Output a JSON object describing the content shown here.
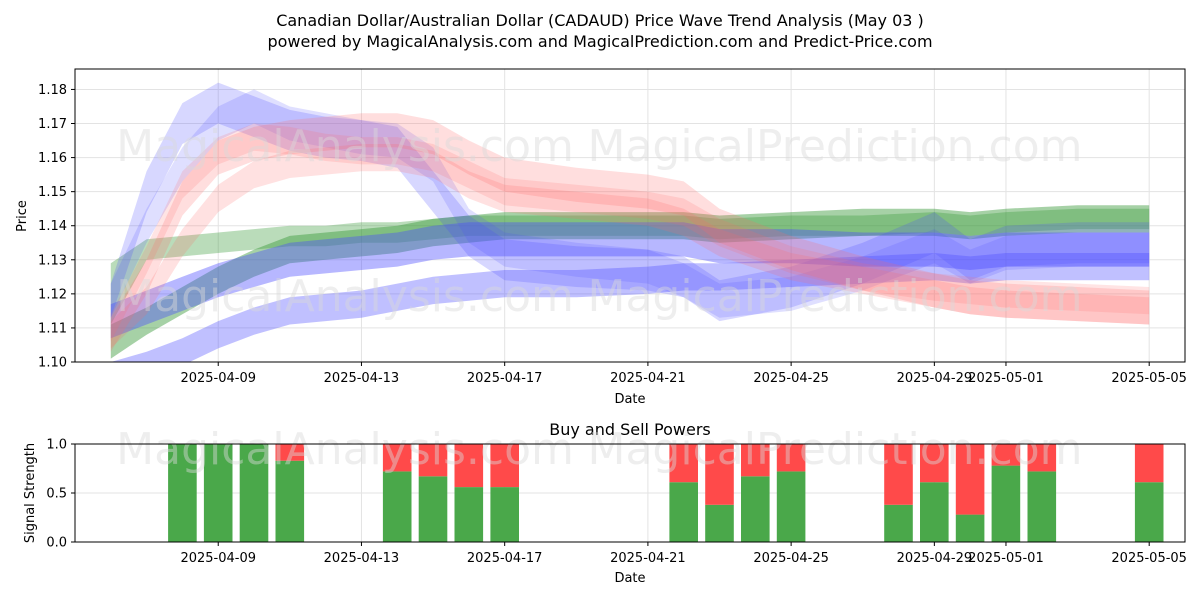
{
  "header": {
    "title_line1": "Canadian Dollar/Australian Dollar (CADAUD) Price Wave Trend Analysis (May 03 )",
    "title_line2": "powered by MagicalAnalysis.com and MagicalPrediction.com and Predict-Price.com"
  },
  "watermarks": {
    "left": "MagicalAnalysis.com",
    "right": "MagicalPrediction.com"
  },
  "chart_data": [
    {
      "type": "area",
      "title": "",
      "xlabel": "Date",
      "ylabel": "Price",
      "ylim": [
        1.1,
        1.186
      ],
      "xlim": [
        "2025-04-05",
        "2025-05-06"
      ],
      "x_ticks": [
        "2025-04-09",
        "2025-04-13",
        "2025-04-17",
        "2025-04-21",
        "2025-04-25",
        "2025-04-29",
        "2025-05-01",
        "2025-05-05"
      ],
      "y_ticks": [
        "1.10",
        "1.11",
        "1.12",
        "1.13",
        "1.14",
        "1.15",
        "1.16",
        "1.17",
        "1.18"
      ],
      "grid": true,
      "band_colors": {
        "green": "#3a9a3a",
        "blue": "#4b4bff",
        "red": "#ff6b6b"
      },
      "x": [
        "2025-04-06",
        "2025-04-07",
        "2025-04-08",
        "2025-04-09",
        "2025-04-10",
        "2025-04-11",
        "2025-04-12",
        "2025-04-13",
        "2025-04-14",
        "2025-04-15",
        "2025-04-16",
        "2025-04-17",
        "2025-04-19",
        "2025-04-21",
        "2025-04-22",
        "2025-04-23",
        "2025-04-25",
        "2025-04-27",
        "2025-04-29",
        "2025-04-30",
        "2025-05-01",
        "2025-05-03",
        "2025-05-05"
      ],
      "series": [
        {
          "color": "green",
          "center": [
            1.12,
            1.133,
            1.134,
            1.135,
            1.136,
            1.137,
            1.137,
            1.138,
            1.138,
            1.139,
            1.14,
            1.14,
            1.14,
            1.14,
            1.14,
            1.139,
            1.14,
            1.14,
            1.141,
            1.14,
            1.141,
            1.142,
            1.142
          ],
          "width": [
            0.018,
            0.006,
            0.006,
            0.006,
            0.006,
            0.006,
            0.006,
            0.006,
            0.006,
            0.006,
            0.006,
            0.006,
            0.006,
            0.006,
            0.006,
            0.006,
            0.006,
            0.006,
            0.006,
            0.006,
            0.006,
            0.006,
            0.006
          ],
          "opacity": 0.35
        },
        {
          "color": "green",
          "center": [
            1.106,
            1.112,
            1.118,
            1.124,
            1.129,
            1.133,
            1.134,
            1.135,
            1.136,
            1.138,
            1.139,
            1.14,
            1.14,
            1.14,
            1.14,
            1.139,
            1.14,
            1.141,
            1.141,
            1.14,
            1.141,
            1.142,
            1.142
          ],
          "width": [
            0.01,
            0.008,
            0.008,
            0.008,
            0.008,
            0.008,
            0.008,
            0.008,
            0.008,
            0.008,
            0.008,
            0.008,
            0.008,
            0.008,
            0.008,
            0.008,
            0.008,
            0.008,
            0.008,
            0.008,
            0.008,
            0.008,
            0.008
          ],
          "opacity": 0.45
        },
        {
          "color": "blue",
          "center": [
            1.095,
            1.099,
            1.103,
            1.108,
            1.112,
            1.115,
            1.116,
            1.117,
            1.119,
            1.121,
            1.122,
            1.123,
            1.123,
            1.124,
            1.125,
            1.125,
            1.126,
            1.127,
            1.128,
            1.127,
            1.128,
            1.128,
            1.128
          ],
          "width": [
            0.01,
            0.008,
            0.008,
            0.008,
            0.008,
            0.008,
            0.008,
            0.008,
            0.008,
            0.008,
            0.008,
            0.008,
            0.008,
            0.008,
            0.008,
            0.008,
            0.008,
            0.008,
            0.008,
            0.008,
            0.008,
            0.008,
            0.008
          ],
          "opacity": 0.35
        },
        {
          "color": "blue",
          "center": [
            1.112,
            1.116,
            1.12,
            1.124,
            1.127,
            1.13,
            1.131,
            1.132,
            1.133,
            1.135,
            1.136,
            1.136,
            1.136,
            1.136,
            1.136,
            1.134,
            1.134,
            1.133,
            1.133,
            1.132,
            1.133,
            1.133,
            1.133
          ],
          "width": [
            0.01,
            0.01,
            0.01,
            0.01,
            0.01,
            0.01,
            0.01,
            0.01,
            0.01,
            0.01,
            0.01,
            0.01,
            0.01,
            0.01,
            0.01,
            0.01,
            0.01,
            0.01,
            0.01,
            0.01,
            0.01,
            0.01,
            0.01
          ],
          "opacity": 0.4
        },
        {
          "color": "blue",
          "center": [
            1.118,
            1.15,
            1.17,
            1.176,
            1.172,
            1.168,
            1.166,
            1.165,
            1.163,
            1.15,
            1.137,
            1.13,
            1.128,
            1.127,
            1.125,
            1.118,
            1.122,
            1.129,
            1.138,
            1.13,
            1.134,
            1.135,
            1.135
          ],
          "width": [
            0.01,
            0.012,
            0.012,
            0.012,
            0.012,
            0.012,
            0.012,
            0.012,
            0.012,
            0.012,
            0.012,
            0.012,
            0.012,
            0.012,
            0.012,
            0.012,
            0.012,
            0.012,
            0.012,
            0.012,
            0.012,
            0.012,
            0.012
          ],
          "opacity": 0.22
        },
        {
          "color": "blue",
          "center": [
            1.118,
            1.14,
            1.158,
            1.17,
            1.175,
            1.17,
            1.168,
            1.166,
            1.165,
            1.158,
            1.14,
            1.133,
            1.13,
            1.128,
            1.124,
            1.118,
            1.12,
            1.126,
            1.134,
            1.128,
            1.132,
            1.133,
            1.133
          ],
          "width": [
            0.01,
            0.01,
            0.01,
            0.01,
            0.01,
            0.01,
            0.01,
            0.01,
            0.01,
            0.01,
            0.01,
            0.01,
            0.01,
            0.01,
            0.01,
            0.01,
            0.01,
            0.01,
            0.01,
            0.01,
            0.01,
            0.01,
            0.01
          ],
          "opacity": 0.18
        },
        {
          "color": "red",
          "center": [
            1.108,
            1.125,
            1.148,
            1.16,
            1.164,
            1.166,
            1.167,
            1.168,
            1.168,
            1.166,
            1.16,
            1.155,
            1.152,
            1.15,
            1.148,
            1.14,
            1.132,
            1.126,
            1.121,
            1.119,
            1.118,
            1.117,
            1.116
          ],
          "width": [
            0.01,
            0.01,
            0.01,
            0.01,
            0.01,
            0.01,
            0.01,
            0.01,
            0.01,
            0.01,
            0.01,
            0.01,
            0.01,
            0.01,
            0.01,
            0.01,
            0.01,
            0.01,
            0.01,
            0.01,
            0.01,
            0.01,
            0.01
          ],
          "opacity": 0.22
        },
        {
          "color": "red",
          "center": [
            1.108,
            1.118,
            1.135,
            1.148,
            1.155,
            1.158,
            1.159,
            1.16,
            1.16,
            1.158,
            1.152,
            1.148,
            1.146,
            1.144,
            1.141,
            1.135,
            1.128,
            1.124,
            1.12,
            1.118,
            1.117,
            1.116,
            1.115
          ],
          "width": [
            0.008,
            0.008,
            0.008,
            0.008,
            0.008,
            0.008,
            0.008,
            0.008,
            0.008,
            0.008,
            0.008,
            0.008,
            0.008,
            0.008,
            0.008,
            0.008,
            0.008,
            0.008,
            0.008,
            0.008,
            0.008,
            0.008,
            0.008
          ],
          "opacity": 0.2
        },
        {
          "color": "red",
          "center": [
            1.11,
            1.13,
            1.152,
            1.162,
            1.166,
            1.165,
            1.163,
            1.162,
            1.162,
            1.16,
            1.155,
            1.15,
            1.148,
            1.146,
            1.144,
            1.138,
            1.13,
            1.125,
            1.122,
            1.121,
            1.12,
            1.119,
            1.118
          ],
          "width": [
            0.008,
            0.008,
            0.008,
            0.008,
            0.008,
            0.008,
            0.008,
            0.008,
            0.008,
            0.008,
            0.008,
            0.008,
            0.008,
            0.008,
            0.008,
            0.008,
            0.008,
            0.008,
            0.008,
            0.008,
            0.008,
            0.008,
            0.008
          ],
          "opacity": 0.18
        }
      ]
    },
    {
      "type": "bar",
      "title": "Buy and Sell Powers",
      "xlabel": "Date",
      "ylabel": "Signal Strength",
      "ylim": [
        0.0,
        1.0
      ],
      "xlim": [
        "2025-04-05",
        "2025-05-06"
      ],
      "x_ticks": [
        "2025-04-09",
        "2025-04-13",
        "2025-04-17",
        "2025-04-21",
        "2025-04-25",
        "2025-04-29",
        "2025-05-01",
        "2025-05-05"
      ],
      "y_ticks": [
        "0.0",
        "0.5",
        "1.0"
      ],
      "grid": true,
      "buy_color": "#4aa84a",
      "sell_color": "#ff4a4a",
      "x": [
        "2025-04-08",
        "2025-04-09",
        "2025-04-10",
        "2025-04-11",
        "2025-04-14",
        "2025-04-15",
        "2025-04-16",
        "2025-04-17",
        "2025-04-22",
        "2025-04-23",
        "2025-04-24",
        "2025-04-25",
        "2025-04-28",
        "2025-04-29",
        "2025-04-30",
        "2025-05-01",
        "2025-05-02",
        "2025-05-05"
      ],
      "buy": [
        1.0,
        1.0,
        1.0,
        0.83,
        0.72,
        0.67,
        0.56,
        0.56,
        0.61,
        0.38,
        0.67,
        0.72,
        0.38,
        0.61,
        0.28,
        0.78,
        0.72,
        0.61
      ]
    }
  ]
}
